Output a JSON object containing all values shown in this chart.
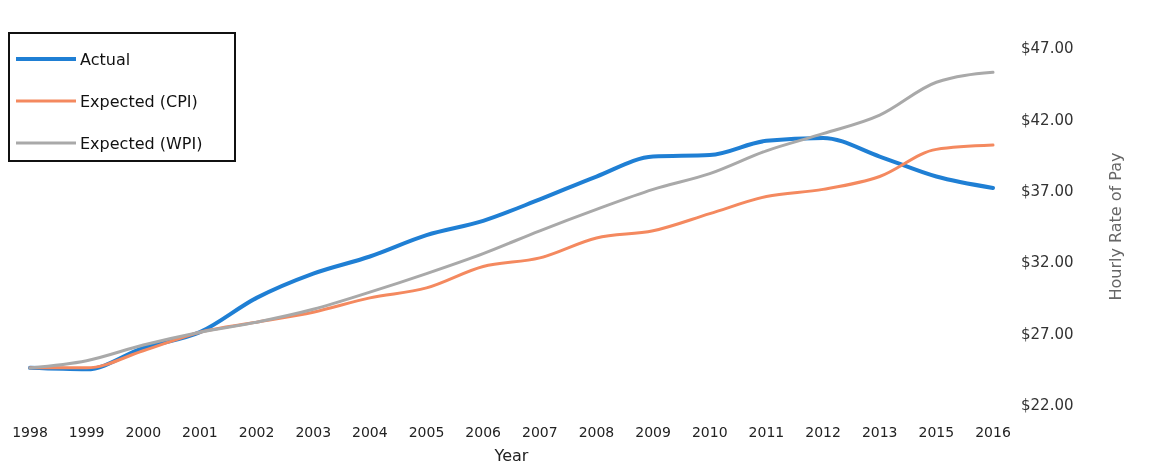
{
  "chart_data": {
    "type": "line",
    "xlabel": "Year",
    "ylabel": "Hourly Rate of Pay",
    "categories": [
      "1998",
      "1999",
      "2000",
      "2001",
      "2002",
      "2003",
      "2004",
      "2005",
      "2006",
      "2007",
      "2008",
      "2009",
      "2010",
      "2011",
      "2012",
      "2013",
      "2015",
      "2016"
    ],
    "series": [
      {
        "name": "Actual",
        "color": "#1f7fd4",
        "values": [
          24.6,
          24.5,
          26.0,
          27.1,
          29.5,
          31.2,
          32.4,
          33.9,
          34.9,
          36.4,
          38.0,
          39.4,
          39.5,
          40.5,
          40.7,
          39.4,
          38.0,
          37.2
        ]
      },
      {
        "name": "Expected (CPI)",
        "color": "#f4895f",
        "values": [
          24.6,
          24.6,
          25.8,
          27.1,
          27.8,
          28.5,
          29.5,
          30.2,
          31.7,
          32.3,
          33.7,
          34.2,
          35.4,
          36.6,
          37.1,
          38.0,
          39.9,
          40.2
        ]
      },
      {
        "name": "Expected (WPI)",
        "color": "#a9a9a9",
        "values": [
          24.6,
          25.1,
          26.2,
          27.1,
          27.8,
          28.7,
          29.9,
          31.2,
          32.6,
          34.2,
          35.7,
          37.1,
          38.2,
          39.8,
          41.0,
          42.3,
          44.6,
          45.3
        ]
      }
    ],
    "ylim": [
      22,
      47
    ],
    "yticks": [
      {
        "value": 22,
        "label": "$22.00"
      },
      {
        "value": 27,
        "label": "$27.00"
      },
      {
        "value": 32,
        "label": "$32.00"
      },
      {
        "value": 37,
        "label": "$37.00"
      },
      {
        "value": 42,
        "label": "$42.00"
      },
      {
        "value": 47,
        "label": "$47.00"
      }
    ],
    "legend": "top left",
    "grid": false,
    "marker": "none",
    "line_style": "solid"
  }
}
